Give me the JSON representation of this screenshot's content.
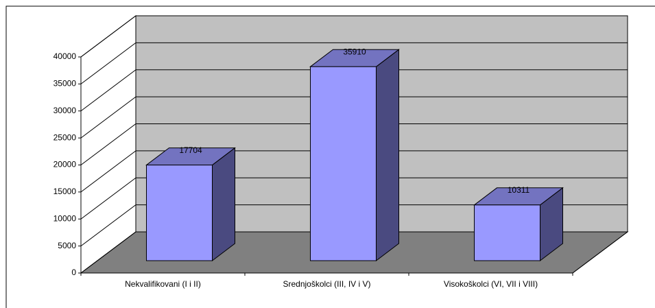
{
  "chart_data": {
    "type": "bar3d",
    "categories": [
      "Nekvalifikovani (I i II)",
      "Srednjoškolci (III, IV i V)",
      "Visokoškolci (VI, VII i VIII)"
    ],
    "values": [
      17704,
      35910,
      10311
    ],
    "color": "#9999ff",
    "ylim": [
      0,
      40000
    ],
    "yticks": [
      0,
      5000,
      10000,
      15000,
      20000,
      25000,
      30000,
      35000,
      40000
    ],
    "grid": true
  }
}
